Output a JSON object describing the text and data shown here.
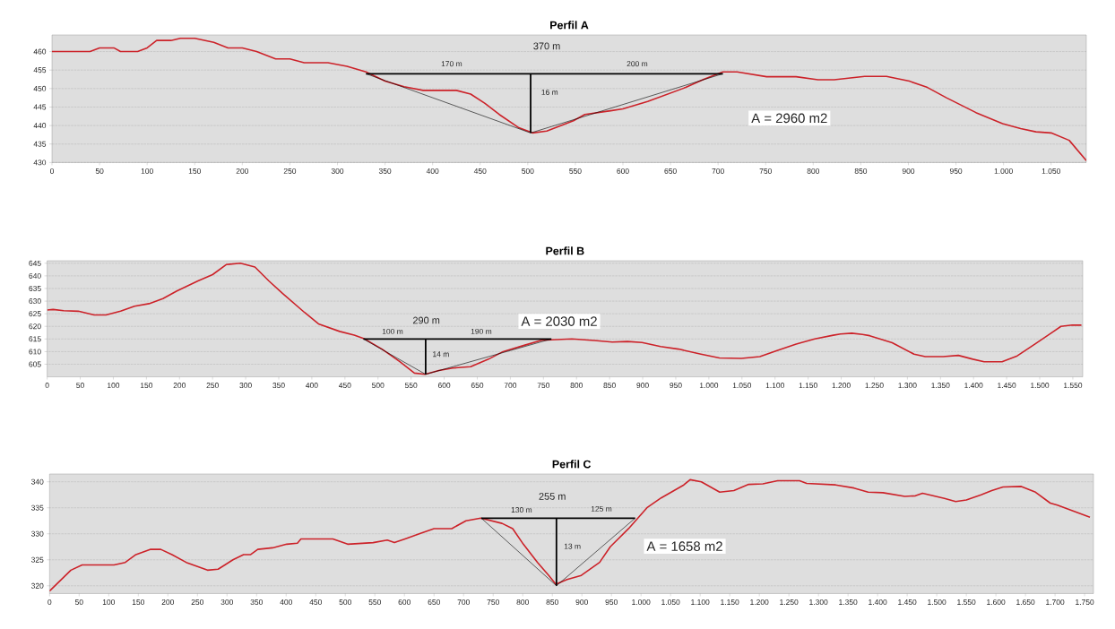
{
  "chart_data": [
    {
      "type": "line",
      "title": "Perfil A",
      "grid": "y",
      "xlim": [
        0,
        1087
      ],
      "ylim": [
        430,
        464.5
      ],
      "xticks": [
        0,
        50,
        100,
        150,
        200,
        250,
        300,
        350,
        400,
        450,
        500,
        550,
        600,
        650,
        700,
        750,
        800,
        850,
        900,
        950,
        {
          "value": 1000,
          "label": "1.000"
        },
        {
          "value": 1050,
          "label": "1.050"
        }
      ],
      "yticks": [
        430,
        435,
        440,
        445,
        450,
        455,
        460
      ],
      "series": [
        {
          "color": "#cc2229",
          "x": [
            0,
            40,
            50,
            65,
            72,
            90,
            100,
            110,
            125,
            135,
            150,
            170,
            185,
            200,
            215,
            235,
            250,
            265,
            290,
            310,
            330,
            350,
            370,
            390,
            410,
            425,
            440,
            455,
            470,
            490,
            505,
            520,
            548,
            560,
            587,
            600,
            626,
            666,
            685,
            705,
            720,
            751,
            782,
            805,
            822,
            854,
            877,
            901,
            920,
            940,
            971,
            999,
            1018,
            1034,
            1050,
            1069,
            1087
          ],
          "values": [
            460,
            460,
            461,
            461,
            460,
            460,
            461,
            463,
            463,
            463.6,
            463.6,
            462.5,
            461,
            461,
            460,
            458,
            458,
            457,
            457,
            456,
            454.5,
            452,
            450.5,
            449.5,
            449.5,
            449.5,
            448.5,
            446,
            443,
            439.5,
            438,
            438.5,
            441.3,
            443,
            444,
            444.5,
            446.5,
            450.3,
            452.5,
            454.5,
            454.5,
            453.2,
            453.2,
            452.4,
            452.4,
            453.3,
            453.3,
            452,
            450.3,
            447.5,
            443.5,
            440.5,
            439.2,
            438.3,
            438,
            436,
            430.5
          ]
        },
        {
          "color": "#000000",
          "x": [
            330,
            705
          ],
          "values": [
            454,
            454
          ]
        },
        {
          "color": "#000000",
          "x": [
            503,
            503
          ],
          "values": [
            454,
            438
          ]
        },
        {
          "color": "#000000",
          "x": [
            330,
            503,
            705
          ],
          "values": [
            454,
            438,
            454
          ]
        }
      ],
      "annotations": [
        "370 m",
        "170 m",
        "200 m",
        "16 m",
        "A = 2960 m2"
      ]
    },
    {
      "type": "line",
      "title": "Perfil B",
      "grid": "y",
      "xlim": [
        0,
        1565
      ],
      "ylim": [
        600,
        646
      ],
      "xticks": [
        0,
        50,
        100,
        150,
        200,
        250,
        300,
        350,
        400,
        450,
        500,
        550,
        600,
        650,
        700,
        750,
        800,
        850,
        900,
        950,
        {
          "value": 1000,
          "label": "1.000"
        },
        {
          "value": 1050,
          "label": "1.050"
        },
        {
          "value": 1100,
          "label": "1.100"
        },
        {
          "value": 1150,
          "label": "1.150"
        },
        {
          "value": 1200,
          "label": "1.200"
        },
        {
          "value": 1250,
          "label": "1.250"
        },
        {
          "value": 1300,
          "label": "1.300"
        },
        {
          "value": 1350,
          "label": "1.350"
        },
        {
          "value": 1400,
          "label": "1.400"
        },
        {
          "value": 1450,
          "label": "1.450"
        },
        {
          "value": 1500,
          "label": "1.500"
        },
        {
          "value": 1550,
          "label": "1.550"
        }
      ],
      "yticks": [
        605,
        610,
        615,
        620,
        625,
        630,
        635,
        640,
        645
      ],
      "series": [
        {
          "color": "#cc2229",
          "x": [
            0,
            9,
            25,
            47,
            71,
            89,
            111,
            132,
            154,
            175,
            196,
            228,
            250,
            271,
            292,
            314,
            335,
            356,
            389,
            410,
            442,
            464,
            480,
            506,
            533,
            555,
            571,
            592,
            613,
            640,
            667,
            689,
            721,
            747,
            793,
            827,
            854,
            877,
            899,
            927,
            954,
            988,
            1016,
            1049,
            1077,
            1104,
            1132,
            1160,
            1188,
            1199,
            1216,
            1232,
            1243,
            1277,
            1310,
            1327,
            1354,
            1377,
            1399,
            1416,
            1443,
            1466,
            1493,
            1521,
            1532,
            1549,
            1563
          ],
          "values": [
            626.5,
            626.7,
            626.2,
            626,
            624.5,
            624.5,
            626,
            628,
            629,
            631,
            634,
            638,
            640.5,
            644.5,
            645,
            643.5,
            638,
            633,
            625.5,
            621,
            618,
            616.5,
            615,
            611,
            606,
            601.5,
            601,
            602.5,
            603.5,
            604,
            607,
            610,
            612.5,
            614.5,
            615,
            614.4,
            613.8,
            614,
            613.6,
            612,
            611,
            609,
            607.5,
            607.3,
            608,
            610.5,
            613,
            615,
            616.5,
            617,
            617.3,
            616.8,
            616.3,
            613.5,
            609,
            608,
            608,
            608.5,
            607,
            606,
            606,
            608.3,
            613,
            618,
            620,
            620.5,
            620.5
          ]
        },
        {
          "color": "#000000",
          "x": [
            478,
            762
          ],
          "values": [
            615,
            615
          ]
        },
        {
          "color": "#000000",
          "x": [
            572,
            572
          ],
          "values": [
            615,
            601
          ]
        },
        {
          "color": "#000000",
          "x": [
            478,
            572,
            762
          ],
          "values": [
            615,
            601,
            615
          ]
        }
      ],
      "annotations": [
        "290 m",
        "100 m",
        "190 m",
        "14 m",
        "A = 2030 m2"
      ]
    },
    {
      "type": "line",
      "title": "Perfil C",
      "grid": "y",
      "xlim": [
        0,
        1765
      ],
      "ylim": [
        318.5,
        341.5
      ],
      "xticks": [
        0,
        50,
        100,
        150,
        200,
        250,
        300,
        350,
        400,
        450,
        500,
        550,
        600,
        650,
        700,
        750,
        800,
        850,
        900,
        950,
        {
          "value": 1000,
          "label": "1.000"
        },
        {
          "value": 1050,
          "label": "1.050"
        },
        {
          "value": 1100,
          "label": "1.100"
        },
        {
          "value": 1150,
          "label": "1.150"
        },
        {
          "value": 1200,
          "label": "1.200"
        },
        {
          "value": 1250,
          "label": "1.250"
        },
        {
          "value": 1300,
          "label": "1.300"
        },
        {
          "value": 1350,
          "label": "1.350"
        },
        {
          "value": 1400,
          "label": "1.400"
        },
        {
          "value": 1450,
          "label": "1.450"
        },
        {
          "value": 1500,
          "label": "1.500"
        },
        {
          "value": 1550,
          "label": "1.550"
        },
        {
          "value": 1600,
          "label": "1.600"
        },
        {
          "value": 1650,
          "label": "1.650"
        },
        {
          "value": 1700,
          "label": "1.700"
        },
        {
          "value": 1750,
          "label": "1.750"
        }
      ],
      "yticks": [
        320,
        325,
        330,
        335,
        340
      ],
      "series": [
        {
          "color": "#cc2229",
          "x": [
            0,
            36,
            55,
            109,
            128,
            146,
            170,
            188,
            207,
            231,
            255,
            267,
            285,
            310,
            328,
            340,
            352,
            377,
            401,
            419,
            425,
            479,
            504,
            547,
            571,
            583,
            601,
            625,
            650,
            680,
            704,
            729,
            765,
            783,
            801,
            825,
            844,
            856,
            875,
            899,
            930,
            948,
            979,
            1010,
            1034,
            1071,
            1083,
            1102,
            1133,
            1157,
            1182,
            1206,
            1231,
            1268,
            1280,
            1329,
            1360,
            1384,
            1409,
            1446,
            1464,
            1476,
            1513,
            1532,
            1550,
            1575,
            1593,
            1612,
            1643,
            1667,
            1692,
            1704,
            1759
          ],
          "values": [
            319,
            323,
            324,
            324,
            324.5,
            326,
            327,
            327,
            326,
            324.5,
            323.5,
            323,
            323.2,
            325,
            326,
            326,
            327,
            327.3,
            328,
            328.2,
            329,
            329,
            328,
            328.3,
            328.8,
            328.3,
            329,
            330,
            331,
            331,
            332.5,
            333,
            332,
            331,
            328,
            324.5,
            322,
            320.3,
            321.2,
            322,
            324.5,
            327.5,
            331,
            335,
            336.9,
            339.3,
            340.4,
            340,
            338,
            338.3,
            339.5,
            339.6,
            340.2,
            340.2,
            339.7,
            339.4,
            338.8,
            338,
            337.9,
            337.2,
            337.3,
            337.8,
            336.8,
            336.2,
            336.5,
            337.5,
            338.3,
            339,
            339.1,
            338,
            335.9,
            335.5,
            333.2
          ]
        },
        {
          "color": "#000000",
          "x": [
            730,
            990
          ],
          "values": [
            333,
            333
          ]
        },
        {
          "color": "#000000",
          "x": [
            857,
            857
          ],
          "values": [
            333,
            320
          ]
        },
        {
          "color": "#000000",
          "x": [
            730,
            857,
            990
          ],
          "values": [
            333,
            320,
            333
          ]
        }
      ],
      "annotations": [
        "255 m",
        "130 m",
        "125 m",
        "13 m",
        "A = 1658 m2"
      ]
    }
  ]
}
